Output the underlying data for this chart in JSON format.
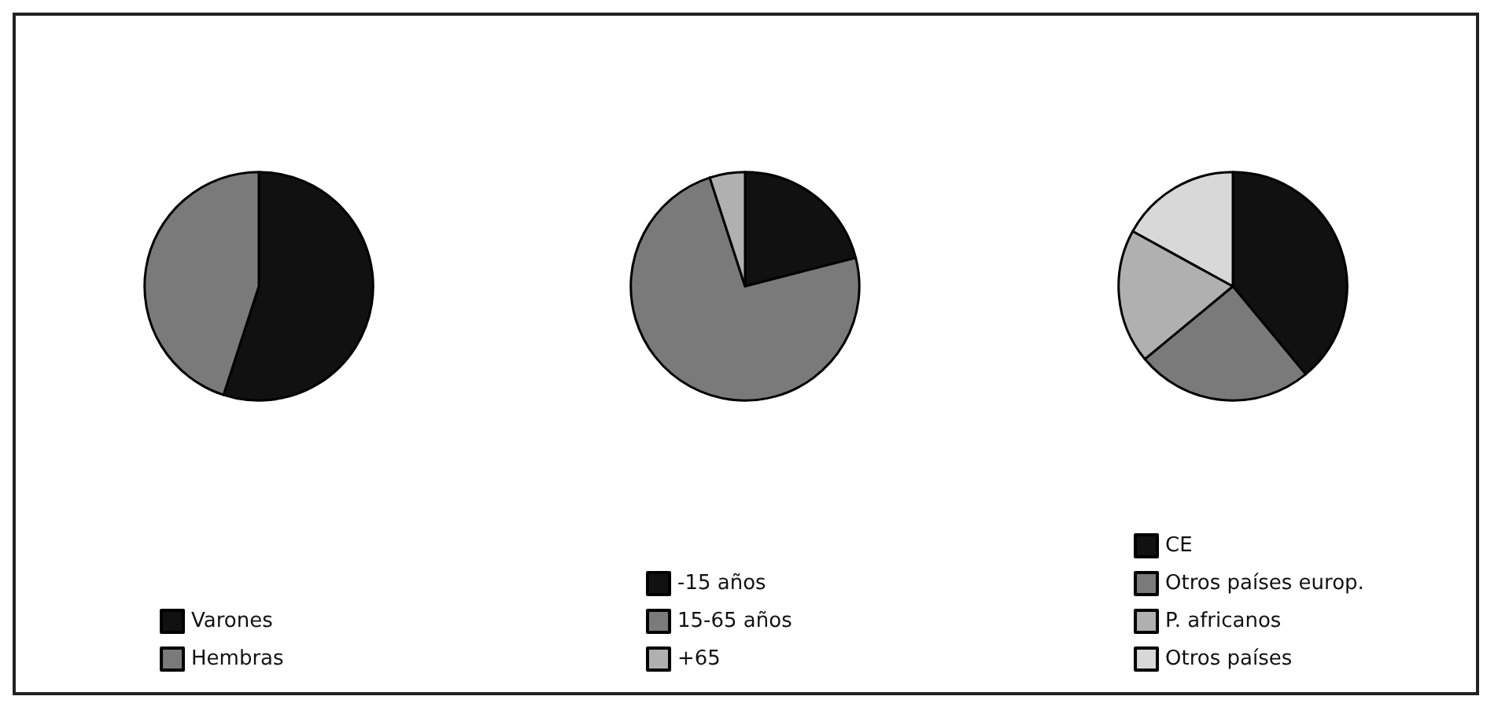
{
  "chart_data": [
    {
      "type": "pie",
      "categories": [
        "Varones",
        "Hembras"
      ],
      "values": [
        55,
        45
      ],
      "colors": [
        "#111111",
        "#7a7a7a"
      ],
      "legend": "bottom"
    },
    {
      "type": "pie",
      "categories": [
        "-15 años",
        "15-65 años",
        "+65"
      ],
      "values": [
        21,
        74,
        5
      ],
      "colors": [
        "#111111",
        "#7a7a7a",
        "#b0b0b0"
      ],
      "legend": "bottom"
    },
    {
      "type": "pie",
      "categories": [
        "CE",
        "Otros países europ.",
        "P. africanos",
        "Otros países"
      ],
      "values": [
        39,
        25,
        19,
        17
      ],
      "colors": [
        "#111111",
        "#7a7a7a",
        "#b0b0b0",
        "#d8d8d8"
      ],
      "legend": "bottom"
    }
  ]
}
